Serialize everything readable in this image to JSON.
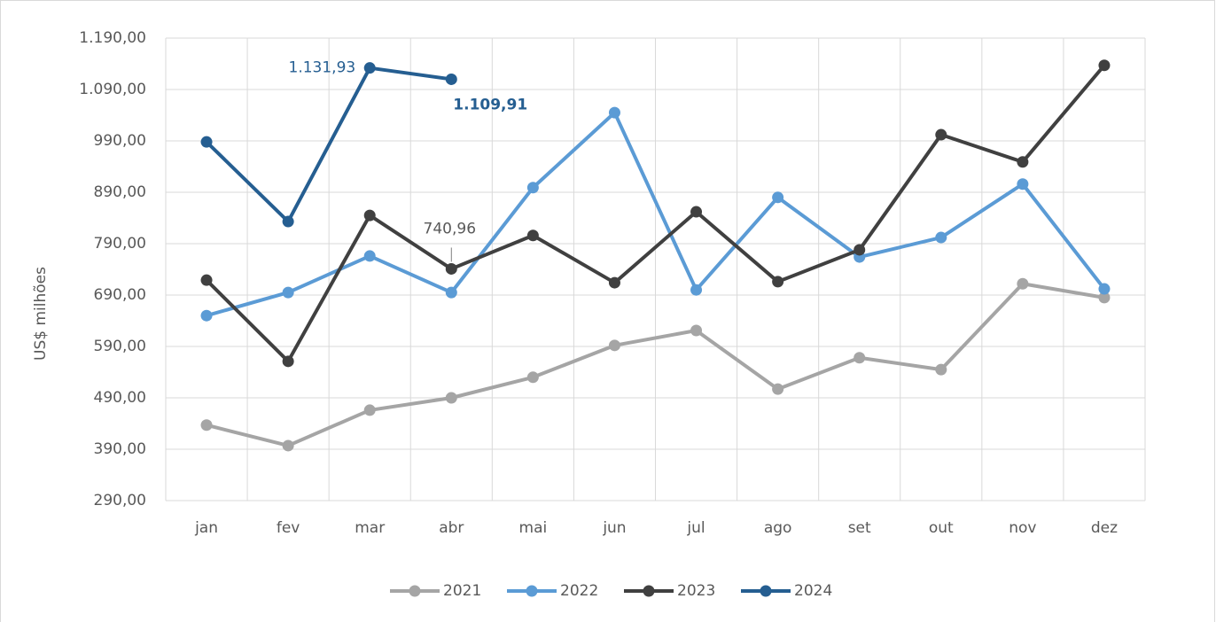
{
  "chart_data": {
    "type": "line",
    "y_label": "US$ milhões",
    "categories": [
      "jan",
      "fev",
      "mar",
      "abr",
      "mai",
      "jun",
      "jul",
      "ago",
      "set",
      "out",
      "nov",
      "dez"
    ],
    "ylim": [
      290,
      1190
    ],
    "yticks": [
      {
        "value": 290,
        "label": "290,00"
      },
      {
        "value": 390,
        "label": "390,00"
      },
      {
        "value": 490,
        "label": "490,00"
      },
      {
        "value": 590,
        "label": "590,00"
      },
      {
        "value": 690,
        "label": "690,00"
      },
      {
        "value": 790,
        "label": "790,00"
      },
      {
        "value": 890,
        "label": "890,00"
      },
      {
        "value": 990,
        "label": "990,00"
      },
      {
        "value": 1090,
        "label": "1.090,00"
      },
      {
        "value": 1190,
        "label": "1.190,00"
      }
    ],
    "grid": true,
    "legend": "bottom",
    "series": [
      {
        "name": "2021",
        "color": "#a5a5a5",
        "values": [
          437,
          397,
          466,
          490,
          530,
          592,
          621,
          507,
          568,
          545,
          712,
          685
        ]
      },
      {
        "name": "2022",
        "color": "#5b9bd5",
        "values": [
          650,
          695,
          766,
          695,
          899,
          1045,
          700,
          880,
          764,
          802,
          906,
          702
        ]
      },
      {
        "name": "2023",
        "color": "#404040",
        "values": [
          719,
          561,
          845,
          740.96,
          806,
          714,
          852,
          716,
          778,
          1002,
          949,
          1137
        ],
        "value_labels": [
          null,
          null,
          null,
          "740,96",
          null,
          null,
          null,
          null,
          null,
          null,
          null,
          null
        ]
      },
      {
        "name": "2024",
        "color": "#255e91",
        "values": [
          988,
          833,
          1131.93,
          1109.91,
          null,
          null,
          null,
          null,
          null,
          null,
          null,
          null
        ],
        "value_labels": [
          null,
          null,
          "1.131,93",
          "1.109,91",
          null,
          null,
          null,
          null,
          null,
          null,
          null,
          null
        ]
      }
    ]
  }
}
